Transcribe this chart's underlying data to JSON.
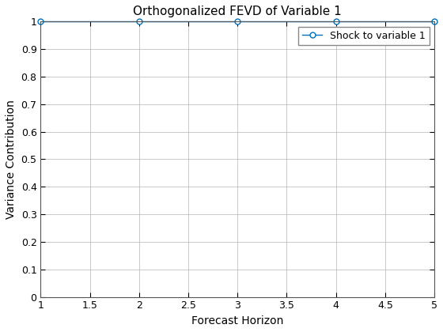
{
  "title": "Orthogonalized FEVD of Variable 1",
  "xlabel": "Forecast Horizon",
  "ylabel": "Variance Contribution",
  "x": [
    1,
    2,
    3,
    4,
    5
  ],
  "y": [
    1.0,
    1.0,
    1.0,
    1.0,
    1.0
  ],
  "line_color": "#0072BD",
  "marker": "o",
  "marker_facecolor": "white",
  "marker_edgecolor": "#0072BD",
  "marker_size": 5,
  "line_width": 1.0,
  "xlim": [
    1,
    5
  ],
  "ylim": [
    0,
    1.0
  ],
  "xticks": [
    1,
    1.5,
    2,
    2.5,
    3,
    3.5,
    4,
    4.5,
    5
  ],
  "yticks": [
    0,
    0.1,
    0.2,
    0.3,
    0.4,
    0.5,
    0.6,
    0.7,
    0.8,
    0.9,
    1.0
  ],
  "legend_label": "Shock to variable 1",
  "background_color": "#ffffff",
  "grid_color": "#b0b0b0",
  "title_fontsize": 11,
  "label_fontsize": 10,
  "tick_fontsize": 9,
  "legend_fontsize": 9
}
